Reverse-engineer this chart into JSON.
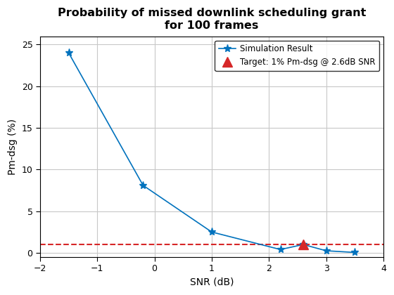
{
  "title": "Probability of missed downlink scheduling grant\nfor 100 frames",
  "xlabel": "SNR (dB)",
  "ylabel": "Pm-dsg (%)",
  "xlim": [
    -2,
    4
  ],
  "ylim": [
    -0.5,
    26
  ],
  "yticks": [
    0,
    5,
    10,
    15,
    20,
    25
  ],
  "xticks": [
    -2,
    -1,
    0,
    1,
    2,
    3,
    4
  ],
  "sim_x": [
    -1.5,
    -0.2,
    1.0,
    2.2,
    2.6,
    3.0,
    3.5
  ],
  "sim_y": [
    24.0,
    8.1,
    2.5,
    0.4,
    1.0,
    0.25,
    0.05
  ],
  "sim_color": "#0072BD",
  "sim_label": "Simulation Result",
  "target_x": 2.6,
  "target_y": 1.0,
  "target_color": "#D62728",
  "target_label": "Target: 1% Pm-dsg @ 2.6dB SNR",
  "hline_y": 1.0,
  "hline_color": "#D62728",
  "hline_style": "--",
  "background_color": "#ffffff",
  "grid_color": "#c8c8c8",
  "title_fontsize": 11.5,
  "label_fontsize": 10,
  "tick_fontsize": 9
}
